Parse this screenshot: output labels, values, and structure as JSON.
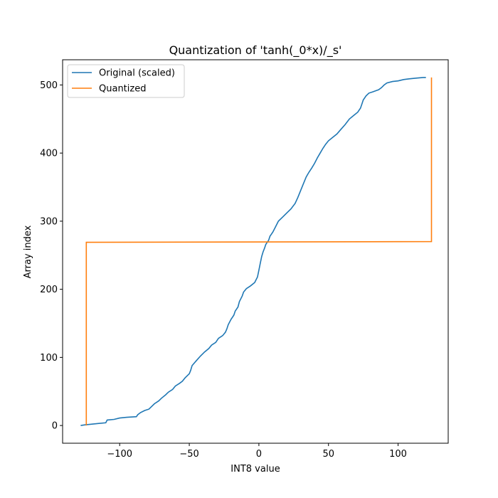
{
  "chart_data": {
    "type": "line",
    "title": "Quantization of 'tanh(_0*x)/_s'",
    "xlabel": "INT8 value",
    "ylabel": "Array index",
    "xlim": [
      -141,
      136
    ],
    "ylim": [
      -26,
      537
    ],
    "xticks": [
      -100,
      -50,
      0,
      50,
      100
    ],
    "yticks": [
      0,
      100,
      200,
      300,
      400,
      500
    ],
    "grid": false,
    "legend_position": "top-left",
    "series": [
      {
        "name": "Original (scaled)",
        "color": "#1f77b4",
        "points": [
          [
            -128,
            0
          ],
          [
            -125,
            1
          ],
          [
            -120,
            2
          ],
          [
            -115,
            3
          ],
          [
            -110,
            4
          ],
          [
            -109,
            8
          ],
          [
            -104,
            9
          ],
          [
            -100,
            11
          ],
          [
            -95,
            12
          ],
          [
            -88,
            13
          ],
          [
            -87,
            16
          ],
          [
            -85,
            19
          ],
          [
            -82,
            22
          ],
          [
            -79,
            24
          ],
          [
            -77,
            28
          ],
          [
            -75,
            32
          ],
          [
            -72,
            36
          ],
          [
            -70,
            40
          ],
          [
            -67,
            45
          ],
          [
            -65,
            49
          ],
          [
            -62,
            53
          ],
          [
            -60,
            58
          ],
          [
            -57,
            62
          ],
          [
            -55,
            65
          ],
          [
            -53,
            70
          ],
          [
            -50,
            76
          ],
          [
            -49,
            81
          ],
          [
            -48,
            88
          ],
          [
            -45,
            95
          ],
          [
            -42,
            102
          ],
          [
            -39,
            108
          ],
          [
            -36,
            113
          ],
          [
            -34,
            118
          ],
          [
            -31,
            122
          ],
          [
            -29,
            128
          ],
          [
            -26,
            132
          ],
          [
            -24,
            137
          ],
          [
            -23,
            142
          ],
          [
            -22,
            148
          ],
          [
            -20,
            156
          ],
          [
            -18,
            162
          ],
          [
            -17,
            168
          ],
          [
            -15,
            174
          ],
          [
            -14,
            182
          ],
          [
            -12,
            190
          ],
          [
            -11,
            196
          ],
          [
            -9,
            201
          ],
          [
            -6,
            205
          ],
          [
            -3,
            210
          ],
          [
            -1,
            218
          ],
          [
            0,
            228
          ],
          [
            1,
            238
          ],
          [
            2,
            248
          ],
          [
            3,
            255
          ],
          [
            4,
            260
          ],
          [
            5,
            266
          ],
          [
            7,
            272
          ],
          [
            8,
            278
          ],
          [
            10,
            284
          ],
          [
            12,
            292
          ],
          [
            14,
            300
          ],
          [
            17,
            306
          ],
          [
            20,
            312
          ],
          [
            23,
            318
          ],
          [
            26,
            326
          ],
          [
            28,
            335
          ],
          [
            30,
            345
          ],
          [
            32,
            355
          ],
          [
            34,
            365
          ],
          [
            36,
            372
          ],
          [
            38,
            378
          ],
          [
            40,
            385
          ],
          [
            42,
            393
          ],
          [
            44,
            400
          ],
          [
            46,
            407
          ],
          [
            48,
            413
          ],
          [
            50,
            418
          ],
          [
            53,
            423
          ],
          [
            56,
            428
          ],
          [
            59,
            435
          ],
          [
            62,
            442
          ],
          [
            65,
            450
          ],
          [
            68,
            455
          ],
          [
            71,
            460
          ],
          [
            73,
            466
          ],
          [
            74,
            472
          ],
          [
            75,
            478
          ],
          [
            77,
            484
          ],
          [
            79,
            488
          ],
          [
            82,
            490
          ],
          [
            86,
            493
          ],
          [
            88,
            496
          ],
          [
            90,
            500
          ],
          [
            92,
            503
          ],
          [
            96,
            505
          ],
          [
            100,
            506
          ],
          [
            104,
            508
          ],
          [
            108,
            509
          ],
          [
            113,
            510
          ],
          [
            118,
            511
          ],
          [
            120,
            511
          ]
        ]
      },
      {
        "name": "Quantized",
        "color": "#ff7f0e",
        "points": [
          [
            -124,
            0
          ],
          [
            -124,
            269
          ],
          [
            124,
            270
          ],
          [
            124,
            511
          ]
        ]
      }
    ]
  }
}
